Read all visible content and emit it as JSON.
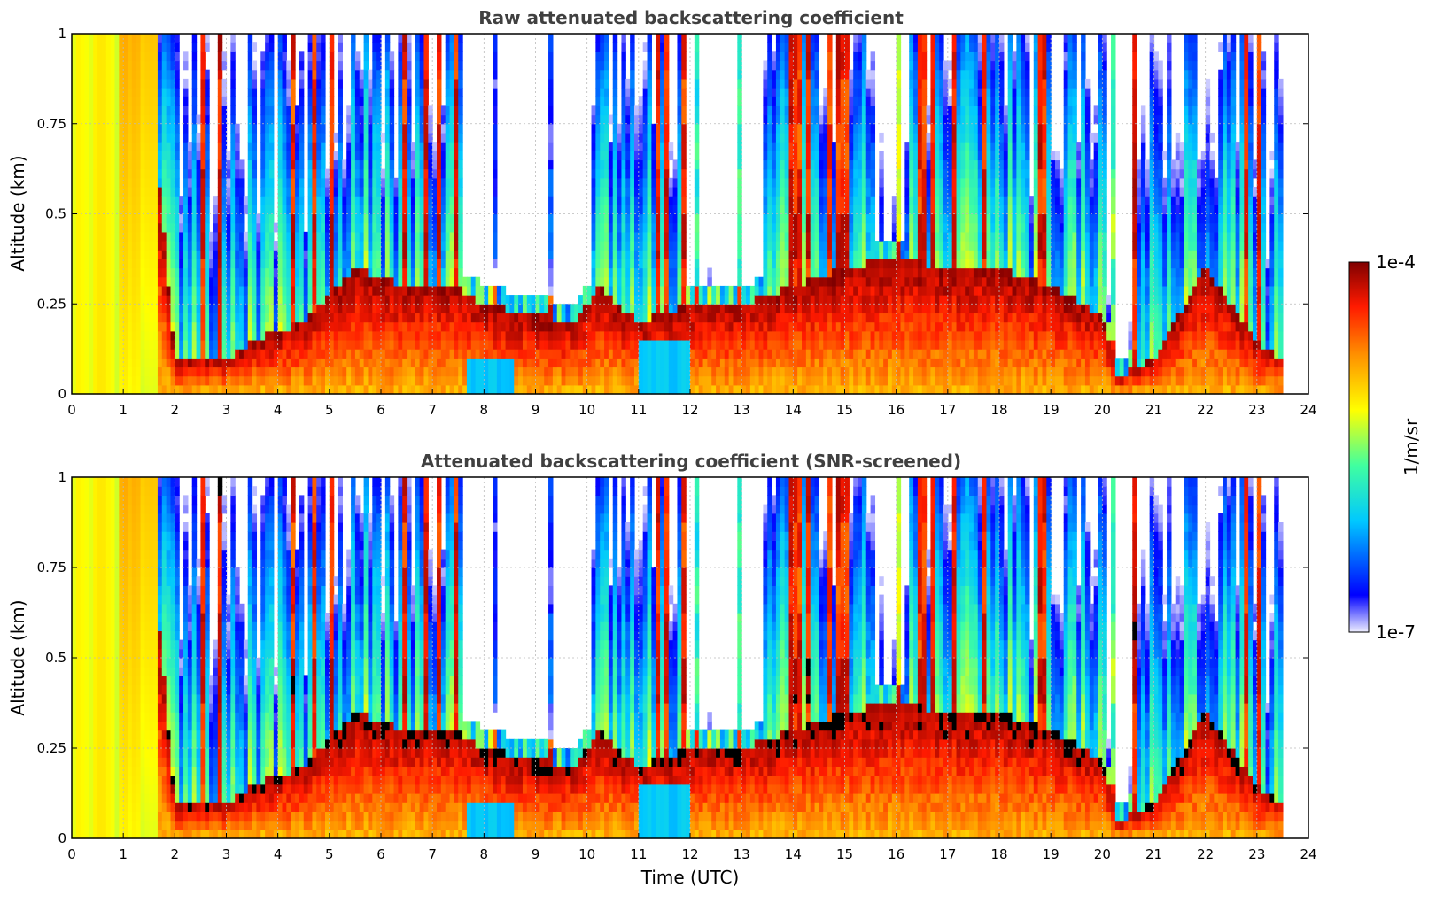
{
  "chart_data": [
    {
      "type": "heatmap",
      "title": "Raw attenuated backscattering coefficient",
      "xlabel": "",
      "ylabel": "Altitude (km)",
      "xlim": [
        0,
        24
      ],
      "ylim": [
        0,
        1
      ],
      "x_ticks": [
        "0",
        "1",
        "2",
        "3",
        "4",
        "5",
        "6",
        "7",
        "8",
        "9",
        "10",
        "11",
        "12",
        "13",
        "14",
        "15",
        "16",
        "17",
        "18",
        "19",
        "20",
        "21",
        "22",
        "23",
        "24"
      ],
      "y_ticks": [
        "0",
        "0.25",
        "0.5",
        "0.75",
        "1"
      ],
      "grid": true,
      "data_extent_x": [
        0,
        23.5
      ],
      "colormap": "jet-like, white at minimum",
      "screened": false
    },
    {
      "type": "heatmap",
      "title": "Attenuated backscattering coefficient (SNR-screened)",
      "xlabel": "Time (UTC)",
      "ylabel": "Altitude (km)",
      "xlim": [
        0,
        24
      ],
      "ylim": [
        0,
        1
      ],
      "x_ticks": [
        "0",
        "1",
        "2",
        "3",
        "4",
        "5",
        "6",
        "7",
        "8",
        "9",
        "10",
        "11",
        "12",
        "13",
        "14",
        "15",
        "16",
        "17",
        "18",
        "19",
        "20",
        "21",
        "22",
        "23",
        "24"
      ],
      "y_ticks": [
        "0",
        "0.25",
        "0.5",
        "0.75",
        "1"
      ],
      "grid": true,
      "data_extent_x": [
        0,
        23.5
      ],
      "colormap": "jet-like, white at minimum, black above maximum",
      "screened": true
    }
  ],
  "colorbar": {
    "max_label": "1e-4",
    "min_label": "1e-7",
    "unit_label": "1/m/sr",
    "scale": "log",
    "colors": [
      "#eeeeff",
      "#0000ff",
      "#00ffff",
      "#ffff00",
      "#ff8000",
      "#ff0000",
      "#800000"
    ]
  }
}
